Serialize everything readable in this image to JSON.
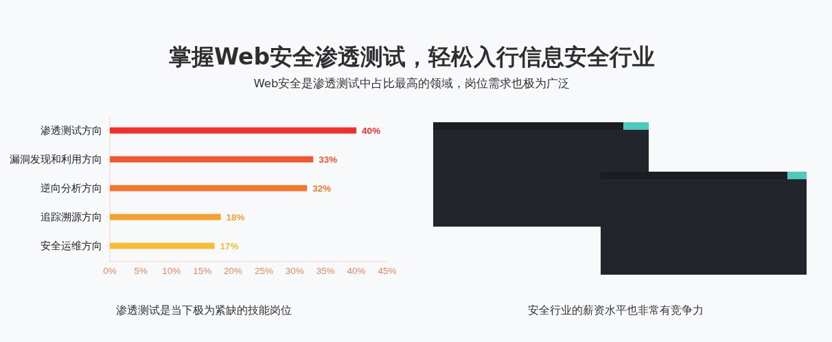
{
  "chart_data": {
    "type": "bar",
    "orientation": "horizontal",
    "title": "掌握Web安全渗透测试，轻松入行信息安全行业",
    "subtitle": "Web安全是渗透测试中占比最高的领域，岗位需求也极为广泛",
    "categories": [
      "渗透测试方向",
      "漏洞发现和利用方向",
      "逆向分析方向",
      "追踪溯源方向",
      "安全运维方向"
    ],
    "values": [
      40,
      33,
      32,
      18,
      17
    ],
    "colors": [
      "#f12f2d",
      "#f2552f",
      "#f2782f",
      "#f4a132",
      "#f6bc34"
    ],
    "value_labels": [
      "40%",
      "33%",
      "32%",
      "18%",
      "17%"
    ],
    "xlim": [
      0,
      45
    ],
    "xticks": [
      {
        "value": 0,
        "label": "0%"
      },
      {
        "value": 5,
        "label": "5%"
      },
      {
        "value": 10,
        "label": "10%"
      },
      {
        "value": 15,
        "label": "15%"
      },
      {
        "value": 20,
        "label": "20%"
      },
      {
        "value": 25,
        "label": "25%"
      },
      {
        "value": 30,
        "label": "30%"
      },
      {
        "value": 35,
        "label": "35%"
      },
      {
        "value": 40,
        "label": "40%"
      },
      {
        "value": 45,
        "label": "45%"
      }
    ],
    "annotations": [
      "渗透测试是当下极为紧缺的技能岗位",
      "安全行业的薪资水平也非常有竞争力"
    ]
  }
}
